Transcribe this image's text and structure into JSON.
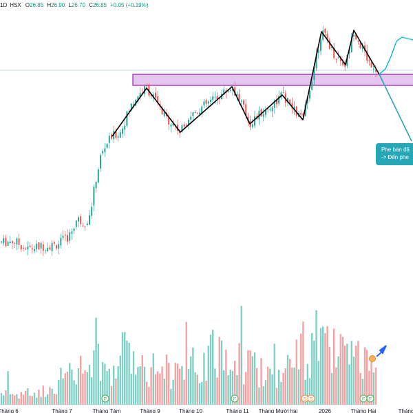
{
  "header": {
    "interval": "1D",
    "exchange": "HSX",
    "open_label": "O",
    "open": "26.85",
    "high_label": "H",
    "high": "26.90",
    "low_label": "L",
    "low": "26.70",
    "close_label": "C",
    "close": "26.85",
    "change": "+0.05 (+0.19%)"
  },
  "annotation": {
    "line1": "Phe bán đã",
    "line2": "-> Đến phe"
  },
  "colors": {
    "up": "#26a69a",
    "down": "#ef5350",
    "volume_up": "#7fd1c6",
    "volume_down": "#f4a3a3",
    "zone_fill": "#dcb3ea",
    "zone_border": "#9b27b0",
    "pattern_line": "#000000",
    "projection": "#00bcd4",
    "callout": "#26a7b8",
    "arrow": "#2962ff"
  },
  "chart_data": {
    "type": "candlestick",
    "title": "",
    "x_ticks": [
      "Tháng 6",
      "Tháng 7",
      "Tháng Tám",
      "Tháng 9",
      "Tháng 10",
      "Tháng 11",
      "Tháng Mười hai",
      "2026",
      "Tháng Hai",
      "Tháng"
    ],
    "price_range": [
      9.5,
      32.5
    ],
    "pattern_points": [
      [
        163,
        23.5
      ],
      [
        213,
        27.0
      ],
      [
        262,
        23.8
      ],
      [
        337,
        27.1
      ],
      [
        363,
        24.4
      ],
      [
        410,
        26.5
      ],
      [
        440,
        24.7
      ],
      [
        467,
        31.1
      ],
      [
        502,
        28.7
      ],
      [
        514,
        31.2
      ],
      [
        551,
        28.0
      ]
    ],
    "projection_points": [
      [
        551,
        28.0
      ],
      [
        560,
        28.4
      ],
      [
        568,
        29.3
      ],
      [
        576,
        30.4
      ],
      [
        584,
        30.7
      ],
      [
        592,
        30.6
      ],
      [
        600,
        30.5
      ]
    ],
    "zone": {
      "price_top": 28.0,
      "price_bottom": 27.2
    },
    "reference_price": 28.3,
    "event_markers": [
      {
        "label": "F",
        "x": 153
      },
      {
        "label": "F",
        "x": 341
      },
      {
        "label": "S",
        "x": 443
      },
      {
        "label": "S",
        "x": 452
      },
      {
        "label": "F",
        "x": 528
      },
      {
        "label": "F",
        "x": 538
      }
    ],
    "anchors": [
      [
        2,
        15.8
      ],
      [
        20,
        15.9
      ],
      [
        40,
        15.3
      ],
      [
        60,
        15.5
      ],
      [
        80,
        15.6
      ],
      [
        100,
        16.2
      ],
      [
        112,
        17.5
      ],
      [
        122,
        17.2
      ],
      [
        130,
        17.6
      ],
      [
        138,
        20.0
      ],
      [
        146,
        22.0
      ],
      [
        155,
        23.0
      ],
      [
        163,
        23.5
      ],
      [
        175,
        23.8
      ],
      [
        188,
        25.5
      ],
      [
        200,
        26.5
      ],
      [
        213,
        27.0
      ],
      [
        225,
        26.2
      ],
      [
        237,
        25.0
      ],
      [
        250,
        24.5
      ],
      [
        262,
        23.8
      ],
      [
        275,
        25.0
      ],
      [
        290,
        25.5
      ],
      [
        305,
        26.0
      ],
      [
        320,
        26.5
      ],
      [
        337,
        27.1
      ],
      [
        350,
        26.0
      ],
      [
        363,
        24.4
      ],
      [
        375,
        25.0
      ],
      [
        390,
        25.5
      ],
      [
        410,
        26.5
      ],
      [
        425,
        25.5
      ],
      [
        440,
        24.7
      ],
      [
        450,
        27.0
      ],
      [
        460,
        29.5
      ],
      [
        467,
        31.1
      ],
      [
        475,
        30.5
      ],
      [
        485,
        29.5
      ],
      [
        495,
        29.0
      ],
      [
        502,
        28.7
      ],
      [
        514,
        31.2
      ],
      [
        525,
        30.0
      ],
      [
        535,
        29.0
      ],
      [
        545,
        28.5
      ],
      [
        551,
        28.0
      ]
    ],
    "volume_anchors": [
      [
        2,
        0.12
      ],
      [
        30,
        0.1
      ],
      [
        60,
        0.12
      ],
      [
        90,
        0.25
      ],
      [
        110,
        0.3
      ],
      [
        140,
        0.4
      ],
      [
        170,
        0.35
      ],
      [
        185,
        0.55
      ],
      [
        210,
        0.4
      ],
      [
        240,
        0.35
      ],
      [
        270,
        0.3
      ],
      [
        300,
        0.45
      ],
      [
        330,
        0.5
      ],
      [
        360,
        0.4
      ],
      [
        390,
        0.3
      ],
      [
        420,
        0.35
      ],
      [
        445,
        0.55
      ],
      [
        460,
        0.6
      ],
      [
        480,
        0.5
      ],
      [
        500,
        0.45
      ],
      [
        520,
        0.4
      ],
      [
        545,
        0.3
      ]
    ]
  }
}
